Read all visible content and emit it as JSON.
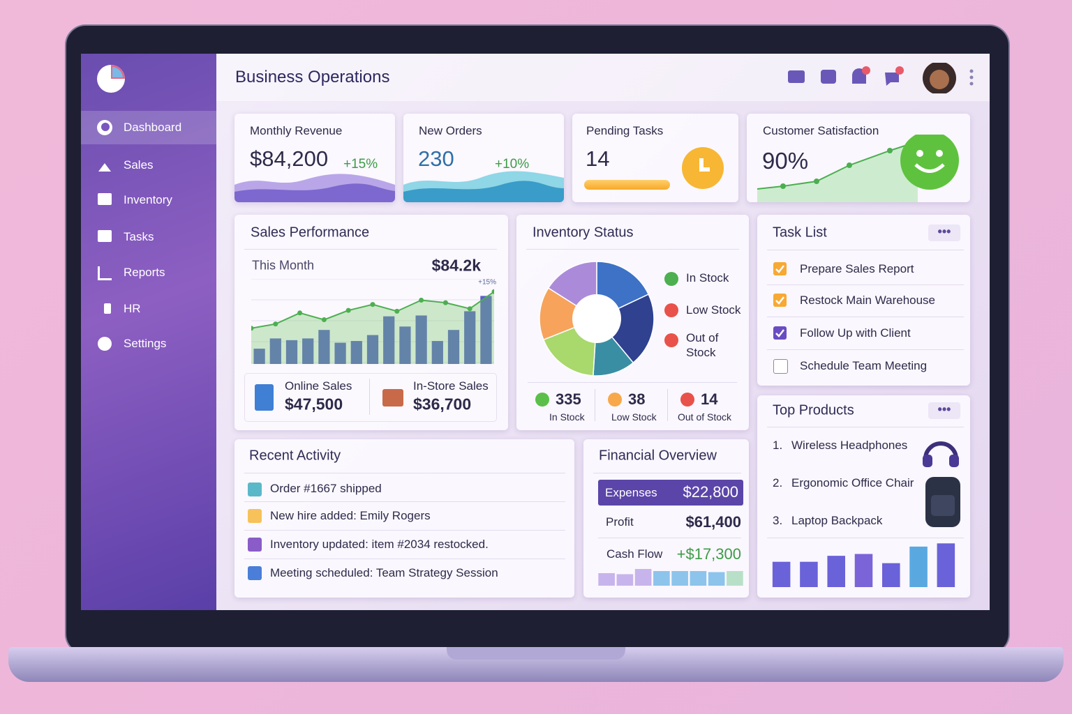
{
  "sidebar": {
    "menu": [
      "Dashboard",
      "Sales",
      "Inventory",
      "Tasks",
      "Reports",
      "HR",
      "Settings"
    ],
    "active": 0
  },
  "header": {
    "title": "Business Operations"
  },
  "kpis": [
    {
      "label": "Monthly Revenue",
      "value": "$84,200",
      "change": "+15%"
    },
    {
      "label": "New Orders",
      "value": "230",
      "change": "+10%"
    },
    {
      "label": "Pending Tasks",
      "value": "14"
    },
    {
      "label": "Customer Satisfaction",
      "value": "90%"
    }
  ],
  "sales_performance": {
    "title": "Sales Performance",
    "period": "This Month",
    "total": "$84.2k",
    "change": "+15%",
    "chart": {
      "ylim": [
        0,
        100
      ],
      "bars": [
        18,
        30,
        28,
        30,
        40,
        25,
        27,
        34,
        56,
        44,
        57,
        27,
        40,
        62,
        80
      ],
      "line": [
        42,
        47,
        60,
        52,
        63,
        70,
        62,
        75,
        72,
        65,
        85
      ],
      "bar_color": "#5a5fc8",
      "line_color": "#4caf50"
    },
    "online": {
      "label": "Online Sales",
      "value": "$47,500"
    },
    "instore": {
      "label": "In-Store Sales",
      "value": "$36,700"
    }
  },
  "inventory": {
    "title": "Inventory Status",
    "legend": [
      "In Stock",
      "Low Stock",
      "Out of Stock"
    ],
    "slices": [
      {
        "value": 18,
        "color": "#3d72c6"
      },
      {
        "value": 21,
        "color": "#2f418f"
      },
      {
        "value": 12,
        "color": "#3a8ea3"
      },
      {
        "value": 18,
        "color": "#a9d86c"
      },
      {
        "value": 15,
        "color": "#f7a35c"
      },
      {
        "value": 16,
        "color": "#ab8bd9"
      }
    ],
    "stats": [
      {
        "value": "335",
        "label": "In Stock"
      },
      {
        "value": "38",
        "label": "Low Stock"
      },
      {
        "value": "14",
        "label": "Out of Stock"
      }
    ]
  },
  "tasks": {
    "title": "Task List",
    "items": [
      {
        "text": "Prepare Sales Report",
        "checked": true,
        "color": "#f7a934"
      },
      {
        "text": "Restock Main Warehouse",
        "checked": true,
        "color": "#f7a934"
      },
      {
        "text": "Follow Up with Client",
        "checked": true,
        "color": "#6a4cc2"
      },
      {
        "text": "Schedule Team Meeting",
        "checked": false,
        "color": "#8a86b0"
      }
    ]
  },
  "top_products": {
    "title": "Top Products",
    "items": [
      {
        "rank": "1.",
        "name": "Wireless Headphones"
      },
      {
        "rank": "2.",
        "name": "Ergonomic Office Chair"
      },
      {
        "rank": "3.",
        "name": "Laptop Backpack"
      }
    ],
    "chart": {
      "ylim": [
        0,
        100
      ],
      "bars": [
        55,
        55,
        68,
        72,
        52,
        88,
        95
      ],
      "colors": [
        "#6a62d8",
        "#6a62d8",
        "#6a62d8",
        "#7a64d8",
        "#6a62d8",
        "#5aa8e0",
        "#6a62d8"
      ]
    }
  },
  "recent_activity": {
    "title": "Recent Activity",
    "items": [
      "Order #1667 shipped",
      "New hire added: Emily Rogers",
      "Inventory updated: item #2034 restocked.",
      "Meeting scheduled: Team Strategy Session"
    ]
  },
  "financial": {
    "title": "Financial Overview",
    "rows": [
      {
        "label": "Expenses",
        "value": "$22,800"
      },
      {
        "label": "Profit",
        "value": "$61,400"
      },
      {
        "label": "Cash Flow",
        "value": "+$17,300"
      }
    ],
    "chart": {
      "ylim": [
        0,
        100
      ],
      "bars": [
        60,
        55,
        80,
        70,
        70,
        70,
        65,
        70
      ],
      "colors": [
        "#c8b4ec",
        "#c8b4ec",
        "#c8b4ec",
        "#8cc4ec",
        "#8cc4ec",
        "#8cc4ec",
        "#8cc4ec",
        "#b8e0c8"
      ]
    }
  }
}
